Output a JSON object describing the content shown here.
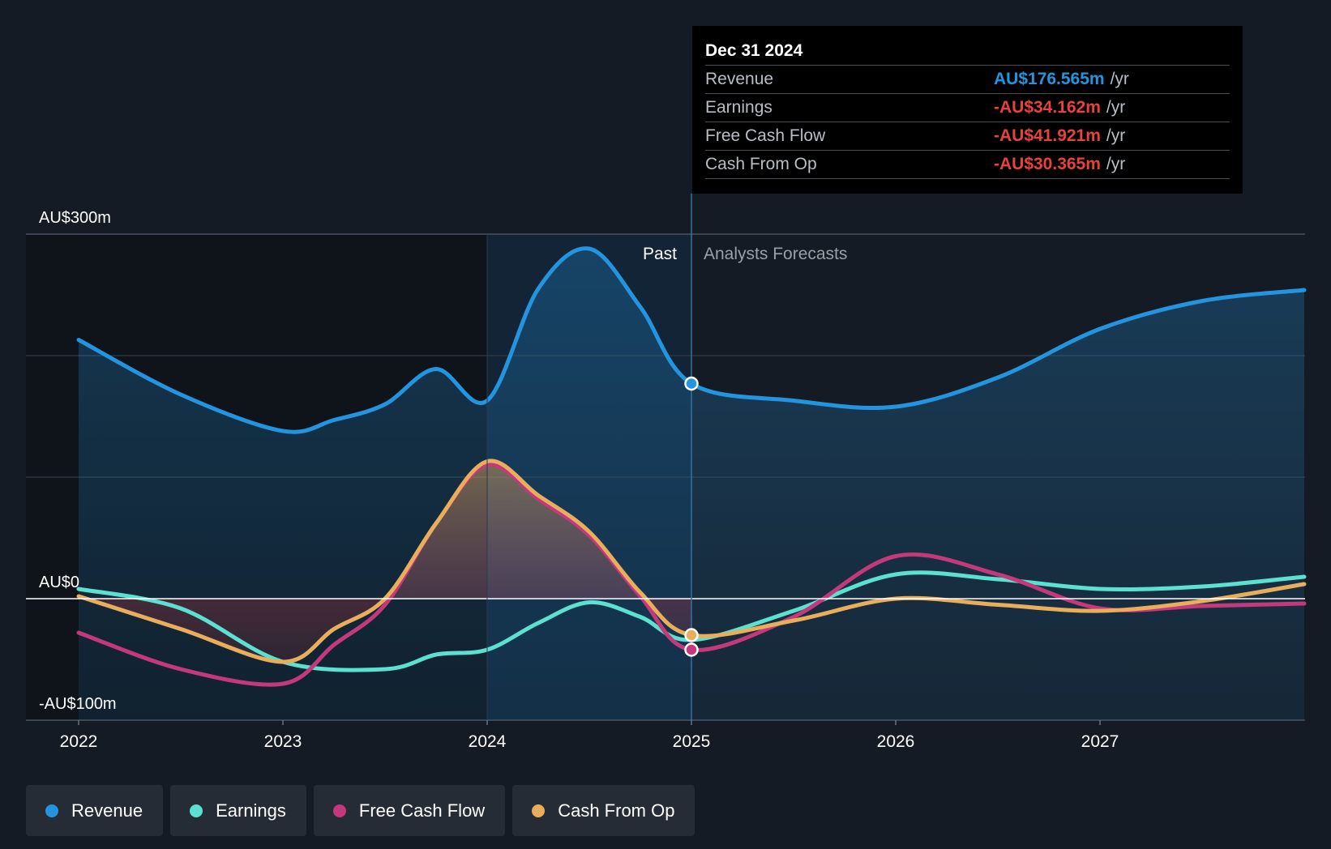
{
  "chart_data": {
    "type": "line",
    "title": "",
    "x_ticks": [
      2022,
      2023,
      2024,
      2025,
      2026,
      2027
    ],
    "y_ticks": [
      {
        "value": 300,
        "label": "AU$300m"
      },
      {
        "value": 0,
        "label": "AU$0"
      },
      {
        "value": -100,
        "label": "-AU$100m"
      }
    ],
    "ylim": [
      -100,
      300
    ],
    "xlim": [
      2021.75,
      2028.0
    ],
    "past_label": "Past",
    "forecast_label": "Analysts Forecasts",
    "past_end": 2025.0,
    "highlight_start": 2024.0,
    "series": [
      {
        "name": "Revenue",
        "color": "#2394df",
        "x": [
          2022.0,
          2022.5,
          2023.0,
          2023.25,
          2023.5,
          2023.75,
          2024.0,
          2024.25,
          2024.5,
          2024.75,
          2025.0,
          2025.5,
          2026.0,
          2026.5,
          2027.0,
          2027.5,
          2028.0
        ],
        "values": [
          213,
          168,
          138,
          147,
          160,
          189,
          163,
          255,
          288,
          240,
          177,
          163,
          158,
          182,
          222,
          245,
          254
        ]
      },
      {
        "name": "Earnings",
        "color": "#5ce0d0",
        "x": [
          2022.0,
          2022.5,
          2023.0,
          2023.5,
          2023.75,
          2024.0,
          2024.25,
          2024.5,
          2024.75,
          2025.0,
          2025.5,
          2026.0,
          2026.5,
          2027.0,
          2027.5,
          2028.0
        ],
        "values": [
          8,
          -8,
          -52,
          -58,
          -46,
          -42,
          -20,
          -3,
          -15,
          -34,
          -10,
          20,
          16,
          8,
          10,
          18
        ]
      },
      {
        "name": "Free Cash Flow",
        "color": "#c4387c",
        "x": [
          2022.0,
          2022.5,
          2023.0,
          2023.25,
          2023.5,
          2023.75,
          2024.0,
          2024.25,
          2024.5,
          2024.75,
          2025.0,
          2025.5,
          2026.0,
          2026.5,
          2027.0,
          2027.5,
          2028.0
        ],
        "values": [
          -28,
          -58,
          -70,
          -38,
          -5,
          62,
          110,
          82,
          52,
          2,
          -42,
          -15,
          35,
          20,
          -8,
          -6,
          -4
        ]
      },
      {
        "name": "Cash From Op",
        "color": "#e8ae5c",
        "x": [
          2022.0,
          2022.5,
          2023.0,
          2023.25,
          2023.5,
          2023.75,
          2024.0,
          2024.25,
          2024.5,
          2024.75,
          2025.0,
          2025.5,
          2026.0,
          2026.5,
          2027.0,
          2027.5,
          2028.0
        ],
        "values": [
          2,
          -25,
          -52,
          -25,
          0,
          62,
          113,
          85,
          55,
          5,
          -30,
          -18,
          0,
          -5,
          -10,
          -2,
          12
        ]
      }
    ]
  },
  "tooltip": {
    "date": "Dec 31 2024",
    "unit": "/yr",
    "rows": [
      {
        "name": "Revenue",
        "value": "AU$176.565m",
        "color": "#2394df"
      },
      {
        "name": "Earnings",
        "value": "-AU$34.162m",
        "color": "#e8413e"
      },
      {
        "name": "Free Cash Flow",
        "value": "-AU$41.921m",
        "color": "#e8413e"
      },
      {
        "name": "Cash From Op",
        "value": "-AU$30.365m",
        "color": "#e8413e"
      }
    ]
  },
  "legend": [
    {
      "label": "Revenue",
      "color": "#2394df"
    },
    {
      "label": "Earnings",
      "color": "#5ce0d0"
    },
    {
      "label": "Free Cash Flow",
      "color": "#c4387c"
    },
    {
      "label": "Cash From Op",
      "color": "#e8ae5c"
    }
  ]
}
